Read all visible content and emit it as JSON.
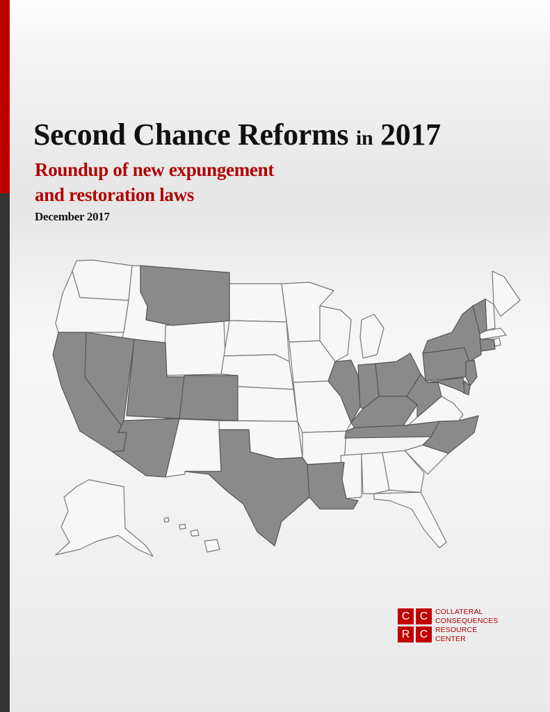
{
  "title": {
    "main": "Second Chance Reforms",
    "connector": "in",
    "year": "2017"
  },
  "subtitle": {
    "line1": "Roundup of new expungement",
    "line2": "and restoration laws"
  },
  "date": "December 2017",
  "colors": {
    "accent": "#c00000",
    "dark_bar": "#333333",
    "map_highlight": "#8a8a8a",
    "map_base": "#f7f7f7"
  },
  "map": {
    "highlighted_states": [
      "Montana",
      "California",
      "Nevada",
      "Utah",
      "Arizona",
      "Colorado",
      "Texas",
      "Louisiana",
      "Illinois",
      "Indiana",
      "Ohio",
      "Kentucky",
      "Tennessee",
      "West Virginia",
      "Pennsylvania",
      "New York",
      "Vermont",
      "Connecticut",
      "New Jersey",
      "Delaware",
      "Maryland",
      "North Carolina"
    ],
    "other_states": [
      "Washington",
      "Oregon",
      "Idaho",
      "Wyoming",
      "North Dakota",
      "South Dakota",
      "Nebraska",
      "Kansas",
      "Oklahoma",
      "New Mexico",
      "Minnesota",
      "Iowa",
      "Missouri",
      "Arkansas",
      "Wisconsin",
      "Michigan",
      "Mississippi",
      "Alabama",
      "Georgia",
      "Florida",
      "South Carolina",
      "Virginia",
      "Maine",
      "New Hampshire",
      "Massachusetts",
      "Rhode Island",
      "Alaska",
      "Hawaii"
    ]
  },
  "logo": {
    "letters": [
      "C",
      "C",
      "R",
      "C"
    ],
    "lines": [
      "COLLATERAL",
      "CONSEQUENCES",
      "RESOURCE",
      "CENTER"
    ]
  }
}
